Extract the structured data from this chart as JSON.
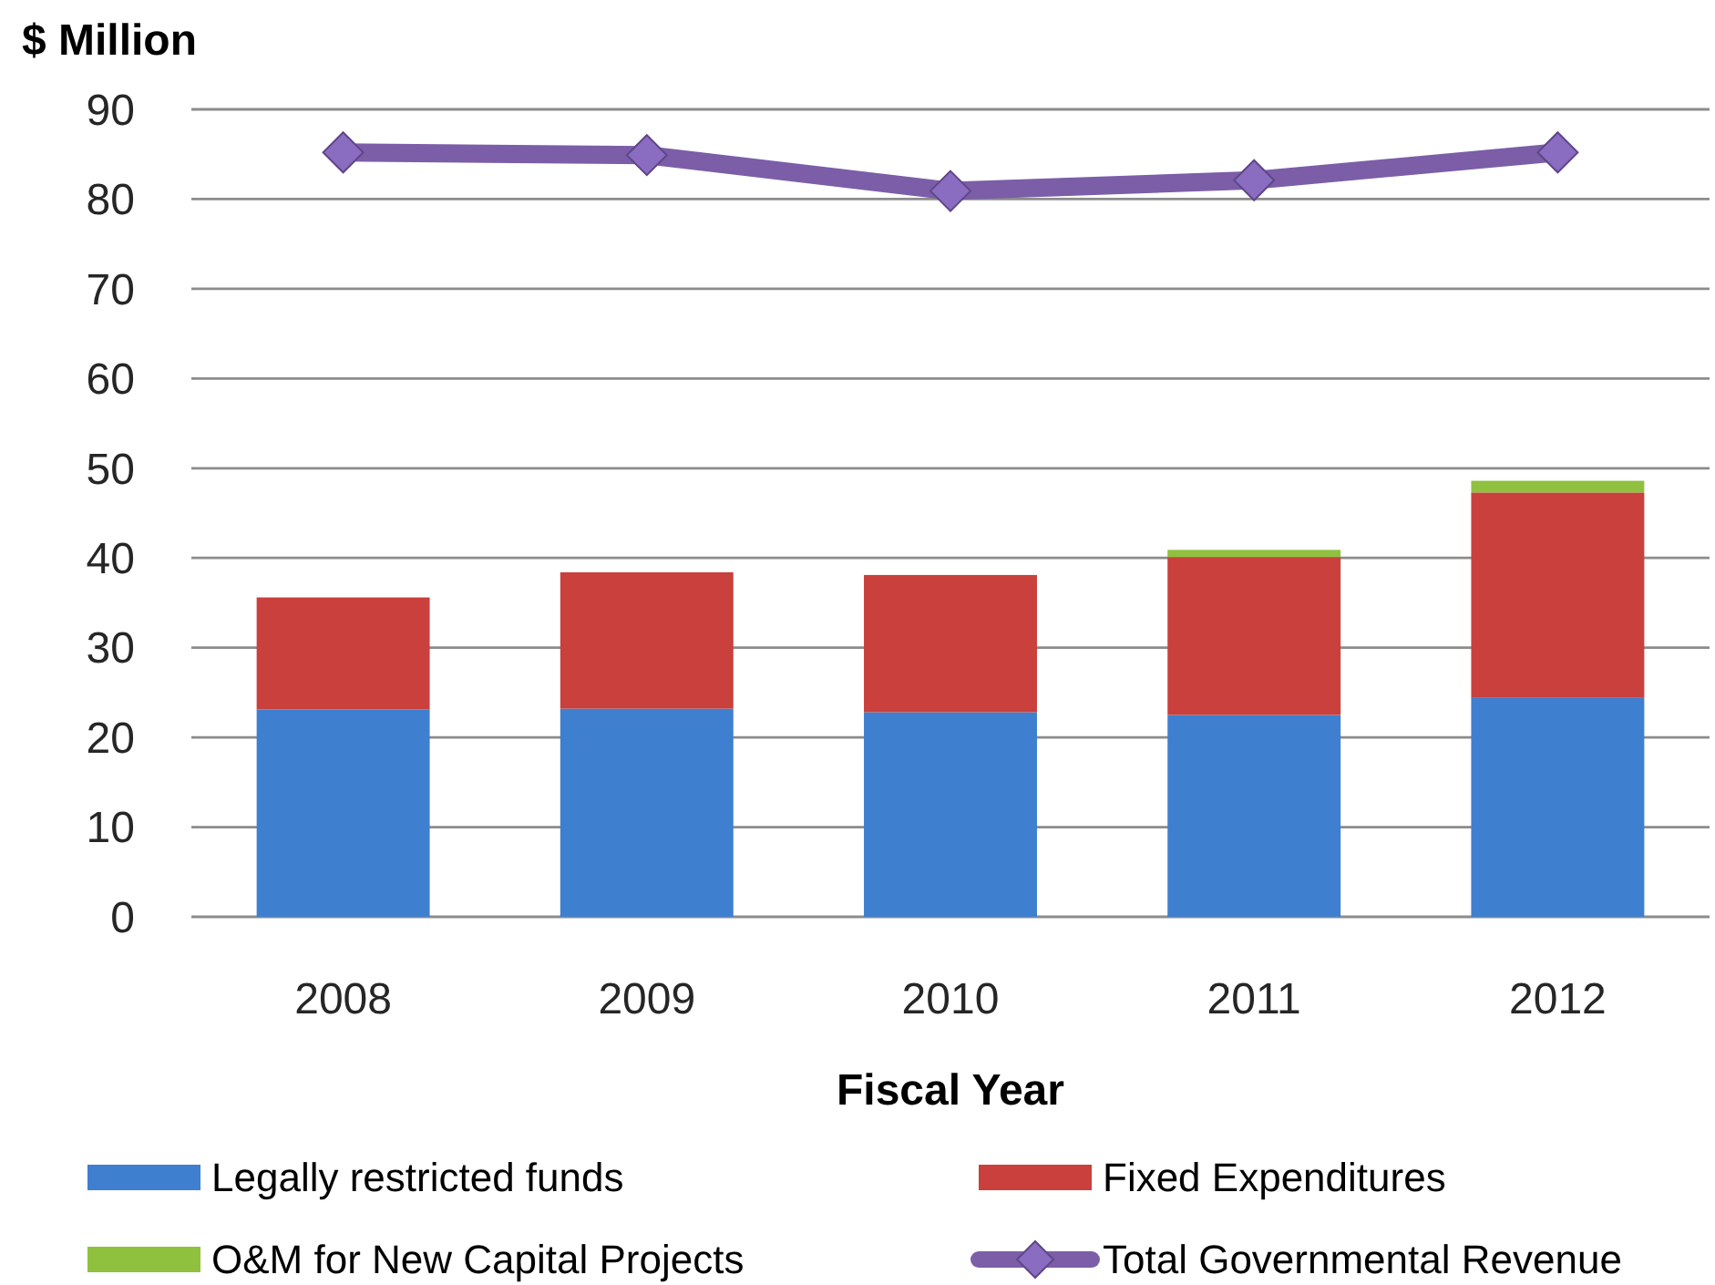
{
  "chart_data": {
    "type": "bar",
    "stacked": true,
    "ylabel": "$ Million",
    "xlabel": "Fiscal Year",
    "categories": [
      "2008",
      "2009",
      "2010",
      "2011",
      "2012"
    ],
    "ylim": [
      0,
      90
    ],
    "yticks": [
      0,
      10,
      20,
      30,
      40,
      50,
      60,
      70,
      80,
      90
    ],
    "grid": "y",
    "legend": "bottom",
    "marker": "diamond",
    "series": [
      {
        "name": "Legally restricted funds",
        "color": "#3f7fcf",
        "values": [
          23.1,
          23.2,
          22.8,
          22.5,
          24.4
        ]
      },
      {
        "name": "Fixed Expenditures",
        "color": "#c9403d",
        "values": [
          12.5,
          15.2,
          15.3,
          17.6,
          22.9
        ]
      },
      {
        "name": "O&M for New Capital Projects",
        "color": "#8fc13f",
        "values": [
          0,
          0,
          0,
          0.8,
          1.3
        ]
      },
      {
        "name": "Total Governmental Revenue",
        "type": "line",
        "color": "#7b5ea7",
        "values": [
          85.2,
          84.9,
          80.9,
          82.1,
          85.2
        ]
      }
    ]
  }
}
